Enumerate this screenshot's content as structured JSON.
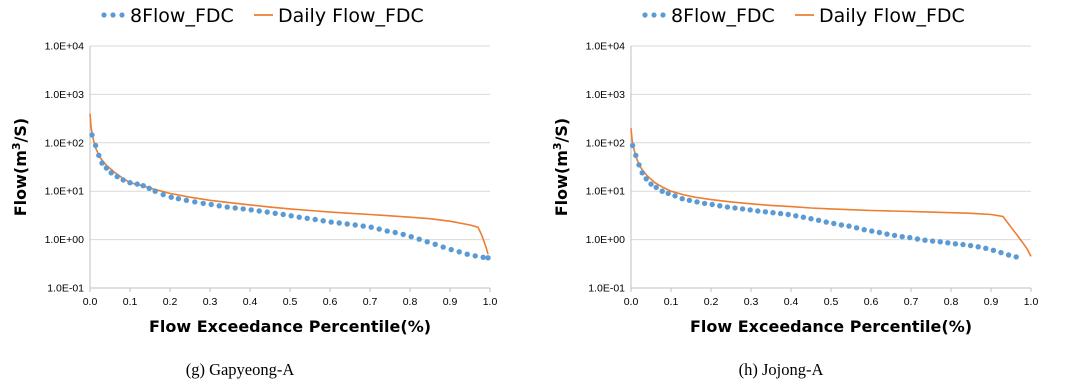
{
  "chart_data": [
    {
      "type": "line",
      "caption": "(g)  Gapyeong-A",
      "xlabel": "Flow Exceedance Percentile(%)",
      "ylabel_main": "Flow(m",
      "ylabel_sup": "3",
      "ylabel_end": "/S)",
      "x_tick_labels": [
        "0.0",
        "0.1",
        "0.2",
        "0.3",
        "0.4",
        "0.5",
        "0.6",
        "0.7",
        "0.8",
        "0.9",
        "1.0"
      ],
      "y_tick_labels": [
        "1.0E-01",
        "1.0E+00",
        "1.0E+01",
        "1.0E+02",
        "1.0E+03",
        "1.0E+04"
      ],
      "xlim": [
        0,
        1
      ],
      "ylim": [
        0.1,
        10000
      ],
      "y_scale": "log",
      "legend_position": "top",
      "grid": "horizontal",
      "series": [
        {
          "name": "8Flow_FDC",
          "style": "dots",
          "color": "#5b9bd5",
          "x": [
            0.005,
            0.014,
            0.022,
            0.03,
            0.041,
            0.053,
            0.068,
            0.083,
            0.1,
            0.118,
            0.133,
            0.148,
            0.163,
            0.183,
            0.203,
            0.221,
            0.241,
            0.262,
            0.283,
            0.303,
            0.323,
            0.343,
            0.363,
            0.383,
            0.403,
            0.423,
            0.443,
            0.463,
            0.483,
            0.503,
            0.523,
            0.543,
            0.563,
            0.583,
            0.603,
            0.623,
            0.643,
            0.663,
            0.683,
            0.703,
            0.723,
            0.743,
            0.763,
            0.783,
            0.803,
            0.823,
            0.843,
            0.863,
            0.883,
            0.903,
            0.923,
            0.943,
            0.963,
            0.983,
            0.995
          ],
          "y": [
            145,
            88,
            55,
            38,
            30,
            24,
            20,
            17,
            15,
            14,
            13,
            11.5,
            10,
            8.5,
            7.5,
            7,
            6.5,
            6,
            5.6,
            5.3,
            5,
            4.7,
            4.5,
            4.3,
            4.1,
            3.9,
            3.7,
            3.5,
            3.3,
            3.1,
            2.9,
            2.75,
            2.6,
            2.45,
            2.3,
            2.2,
            2.1,
            2,
            1.9,
            1.8,
            1.65,
            1.5,
            1.4,
            1.28,
            1.15,
            1.02,
            0.9,
            0.8,
            0.7,
            0.62,
            0.56,
            0.5,
            0.46,
            0.43,
            0.42
          ]
        },
        {
          "name": "Daily Flow_FDC",
          "style": "line",
          "color": "#ed7d31",
          "x": [
            0,
            0.003,
            0.008,
            0.015,
            0.025,
            0.04,
            0.06,
            0.08,
            0.1,
            0.13,
            0.16,
            0.2,
            0.25,
            0.3,
            0.35,
            0.4,
            0.45,
            0.5,
            0.55,
            0.6,
            0.65,
            0.7,
            0.75,
            0.8,
            0.85,
            0.9,
            0.95,
            0.97,
            0.98,
            0.99,
            0.995
          ],
          "y": [
            400,
            200,
            120,
            75,
            50,
            35,
            25,
            19,
            15,
            13,
            11,
            9,
            7.5,
            6.5,
            5.8,
            5.2,
            4.7,
            4.3,
            4,
            3.7,
            3.5,
            3.3,
            3.1,
            2.9,
            2.7,
            2.4,
            2,
            1.8,
            1.2,
            0.7,
            0.5
          ]
        }
      ]
    },
    {
      "type": "line",
      "caption": "(h)  Jojong-A",
      "xlabel": "Flow Exceedance Percentile(%)",
      "ylabel_main": "Flow(m",
      "ylabel_sup": "3",
      "ylabel_end": "/S)",
      "x_tick_labels": [
        "0.0",
        "0.1",
        "0.2",
        "0.3",
        "0.4",
        "0.5",
        "0.6",
        "0.7",
        "0.8",
        "0.9",
        "1.0"
      ],
      "y_tick_labels": [
        "1.0E-01",
        "1.0E+00",
        "1.0E+01",
        "1.0E+02",
        "1.0E+03",
        "1.0E+04"
      ],
      "xlim": [
        0,
        1
      ],
      "ylim": [
        0.1,
        10000
      ],
      "y_scale": "log",
      "legend_position": "top",
      "grid": "horizontal",
      "series": [
        {
          "name": "8Flow_FDC",
          "style": "dots",
          "color": "#5b9bd5",
          "x": [
            0.004,
            0.012,
            0.02,
            0.028,
            0.038,
            0.05,
            0.063,
            0.078,
            0.093,
            0.11,
            0.128,
            0.146,
            0.165,
            0.184,
            0.203,
            0.222,
            0.241,
            0.26,
            0.279,
            0.298,
            0.317,
            0.336,
            0.355,
            0.374,
            0.393,
            0.412,
            0.431,
            0.45,
            0.469,
            0.488,
            0.507,
            0.526,
            0.545,
            0.564,
            0.583,
            0.602,
            0.621,
            0.64,
            0.659,
            0.678,
            0.697,
            0.716,
            0.735,
            0.754,
            0.773,
            0.792,
            0.811,
            0.83,
            0.849,
            0.868,
            0.887,
            0.906,
            0.925,
            0.944,
            0.963
          ],
          "y": [
            88,
            55,
            35,
            24,
            18,
            14,
            12,
            10,
            9,
            8,
            7,
            6.5,
            6,
            5.6,
            5.3,
            5,
            4.7,
            4.5,
            4.3,
            4.1,
            3.9,
            3.75,
            3.6,
            3.45,
            3.3,
            3.1,
            2.9,
            2.7,
            2.5,
            2.3,
            2.15,
            2,
            1.9,
            1.75,
            1.6,
            1.5,
            1.4,
            1.3,
            1.22,
            1.15,
            1.1,
            1.03,
            0.97,
            0.93,
            0.9,
            0.86,
            0.82,
            0.79,
            0.75,
            0.71,
            0.66,
            0.6,
            0.54,
            0.48,
            0.44
          ]
        },
        {
          "name": "Daily Flow_FDC",
          "style": "line",
          "color": "#ed7d31",
          "x": [
            0,
            0.003,
            0.008,
            0.015,
            0.025,
            0.04,
            0.06,
            0.08,
            0.1,
            0.13,
            0.16,
            0.2,
            0.25,
            0.3,
            0.35,
            0.4,
            0.45,
            0.5,
            0.55,
            0.6,
            0.65,
            0.7,
            0.75,
            0.8,
            0.85,
            0.9,
            0.93,
            0.95,
            0.97,
            0.99,
            1.0
          ],
          "y": [
            200,
            110,
            70,
            45,
            30,
            21,
            15,
            12,
            10,
            8.5,
            7.5,
            6.7,
            6,
            5.5,
            5.1,
            4.8,
            4.5,
            4.3,
            4.15,
            4,
            3.9,
            3.8,
            3.7,
            3.6,
            3.5,
            3.3,
            3,
            1.8,
            1.1,
            0.65,
            0.45
          ]
        }
      ]
    }
  ]
}
